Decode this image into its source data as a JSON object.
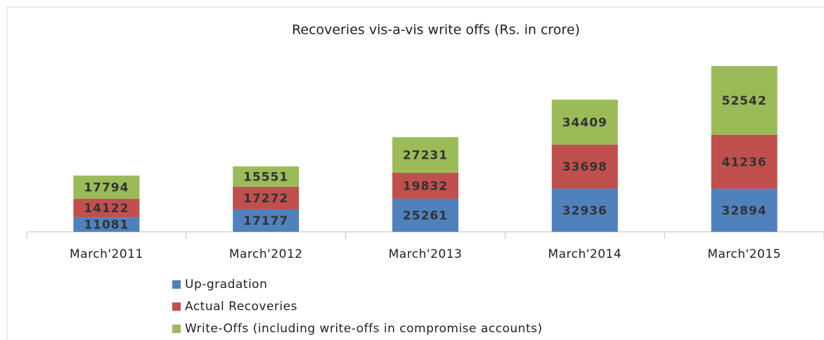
{
  "chart_data": {
    "type": "stacked_bar",
    "title": "Recoveries vis-a-vis write offs (Rs. in crore)",
    "categories": [
      "March'2011",
      "March'2012",
      "March'2013",
      "March'2014",
      "March'2015"
    ],
    "series": [
      {
        "name": "Up-gradation",
        "color": "#4f81bd",
        "values": [
          11081,
          17177,
          25261,
          32936,
          32894
        ]
      },
      {
        "name": "Actual Recoveries",
        "color": "#c0504d",
        "values": [
          14122,
          17272,
          19832,
          33698,
          41236
        ]
      },
      {
        "name": "Write-Offs (including write-offs in compromise accounts)",
        "color": "#9bbb59",
        "values": [
          17794,
          15551,
          27231,
          34409,
          52542
        ]
      }
    ]
  }
}
